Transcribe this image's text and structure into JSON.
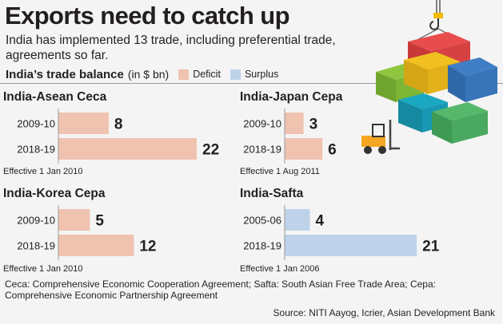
{
  "title": "Exports need to catch up",
  "subtitle": "India has implemented 13 trade, including preferential trade, agreements so far.",
  "legend": {
    "title": "India’s trade balance",
    "unit": "(in $ bn)",
    "items": [
      {
        "label": "Deficit",
        "color": "#f0c2b0"
      },
      {
        "label": "Surplus",
        "color": "#bed3ea"
      }
    ]
  },
  "chart_data": [
    {
      "type": "bar",
      "orientation": "horizontal",
      "title": "India-Asean Ceca",
      "categories": [
        "2009-10",
        "2018-19"
      ],
      "values": [
        8,
        22
      ],
      "labels": [
        "8",
        "22"
      ],
      "colors": [
        "#f0c2b0",
        "#f0c2b0"
      ],
      "note": "Effective 1 Jan 2010",
      "scale_max": 22
    },
    {
      "type": "bar",
      "orientation": "horizontal",
      "title": "India-Japan Cepa",
      "categories": [
        "2009-10",
        "2018-19"
      ],
      "values": [
        3,
        6
      ],
      "labels": [
        "3",
        "6"
      ],
      "colors": [
        "#f0c2b0",
        "#f0c2b0"
      ],
      "note": "Effective 1 Aug 2011",
      "scale_max": 22
    },
    {
      "type": "bar",
      "orientation": "horizontal",
      "title": "India-Korea Cepa",
      "categories": [
        "2009-10",
        "2018-19"
      ],
      "values": [
        5,
        12
      ],
      "labels": [
        "5",
        "12"
      ],
      "colors": [
        "#f0c2b0",
        "#f0c2b0"
      ],
      "note": "Effective 1 Jan 2010",
      "scale_max": 22
    },
    {
      "type": "bar",
      "orientation": "horizontal",
      "title": "India-Safta",
      "categories": [
        "2005-06",
        "2018-19"
      ],
      "values": [
        4,
        21
      ],
      "labels": [
        "4",
        "21"
      ],
      "colors": [
        "#bed3ea",
        "#bed3ea"
      ],
      "note": "Effective 1 Jan 2006",
      "scale_max": 22
    }
  ],
  "footnote": "Ceca: Comprehensive Economic Cooperation Agreement; Safta: South Asian Free Trade Area; Cepa: Comprehensive Economic Partnership Agreement",
  "source": "Source: NITI Aayog, Icrier, Asian Development Bank",
  "illustration": {
    "icons": [
      "crane-hook-icon",
      "shipping-containers-icon",
      "forklift-icon"
    ]
  }
}
